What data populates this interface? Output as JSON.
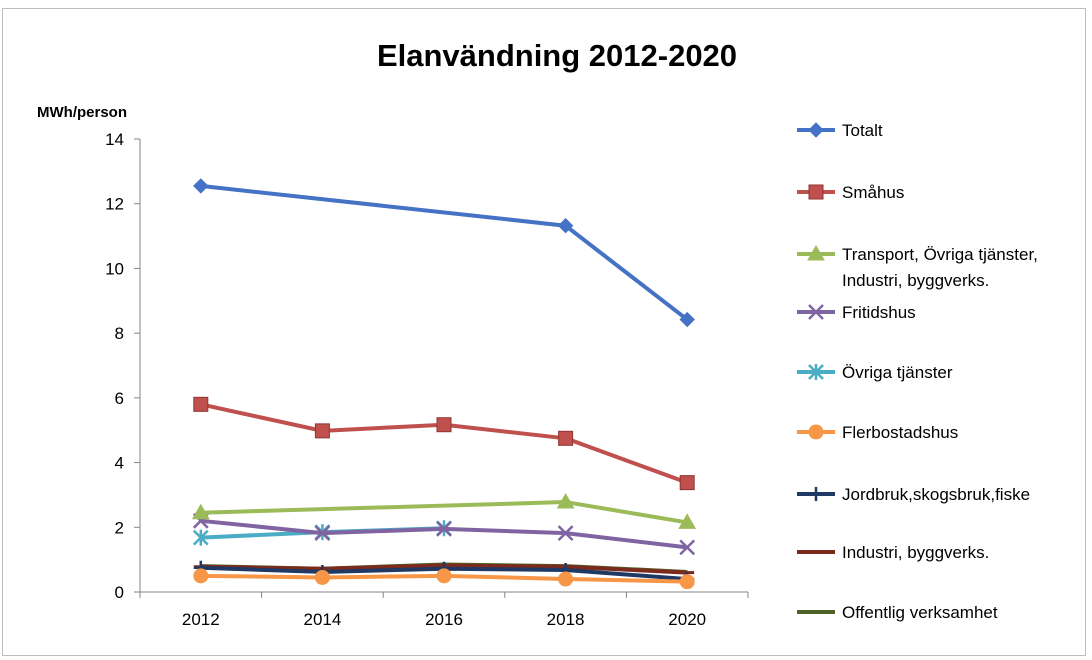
{
  "chart_data": {
    "type": "line",
    "title": "Elanvändning 2012-2020",
    "ylabel": "MWh/person",
    "xlabel": "",
    "categories": [
      "2012",
      "2014",
      "2016",
      "2018",
      "2020"
    ],
    "ylim": [
      0,
      14
    ],
    "yticks": [
      0,
      2,
      4,
      6,
      8,
      10,
      12,
      14
    ],
    "grid": false,
    "legend_position": "right",
    "series": [
      {
        "name": "Totalt",
        "color": "#4472C4",
        "marker": "diamond",
        "values": [
          12.55,
          null,
          null,
          11.32,
          8.42
        ]
      },
      {
        "name": "Småhus",
        "color": "#C0504D",
        "marker": "square",
        "values": [
          5.8,
          4.98,
          5.17,
          4.75,
          3.38
        ]
      },
      {
        "name": "Transport, Övriga tjänster, Industri, byggverks.",
        "color": "#9BBB59",
        "marker": "triangle",
        "values": [
          2.45,
          null,
          null,
          2.78,
          2.15
        ]
      },
      {
        "name": "Fritidshus",
        "color": "#8064A2",
        "marker": "x",
        "values": [
          2.2,
          1.82,
          1.95,
          1.82,
          1.38
        ]
      },
      {
        "name": "Övriga tjänster",
        "color": "#4BACC6",
        "marker": "star",
        "values": [
          1.68,
          1.85,
          1.97,
          null,
          null
        ]
      },
      {
        "name": "Flerbostadshus",
        "color": "#F79646",
        "marker": "circle",
        "values": [
          0.5,
          0.45,
          0.5,
          0.4,
          0.32
        ]
      },
      {
        "name": "Jordbruk,skogsbruk,fiske",
        "color": "#1F3864",
        "marker": "plus",
        "values": [
          0.75,
          0.62,
          0.72,
          0.68,
          0.4
        ]
      },
      {
        "name": "Industri, byggverks.",
        "color": "#7B2B1E",
        "marker": "dash",
        "values": [
          0.78,
          0.72,
          0.82,
          0.78,
          0.6
        ]
      },
      {
        "name": "Offentlig verksamhet",
        "color": "#4F6228",
        "marker": "none",
        "values": [
          0.8,
          0.72,
          0.85,
          0.8,
          0.62
        ]
      }
    ]
  }
}
